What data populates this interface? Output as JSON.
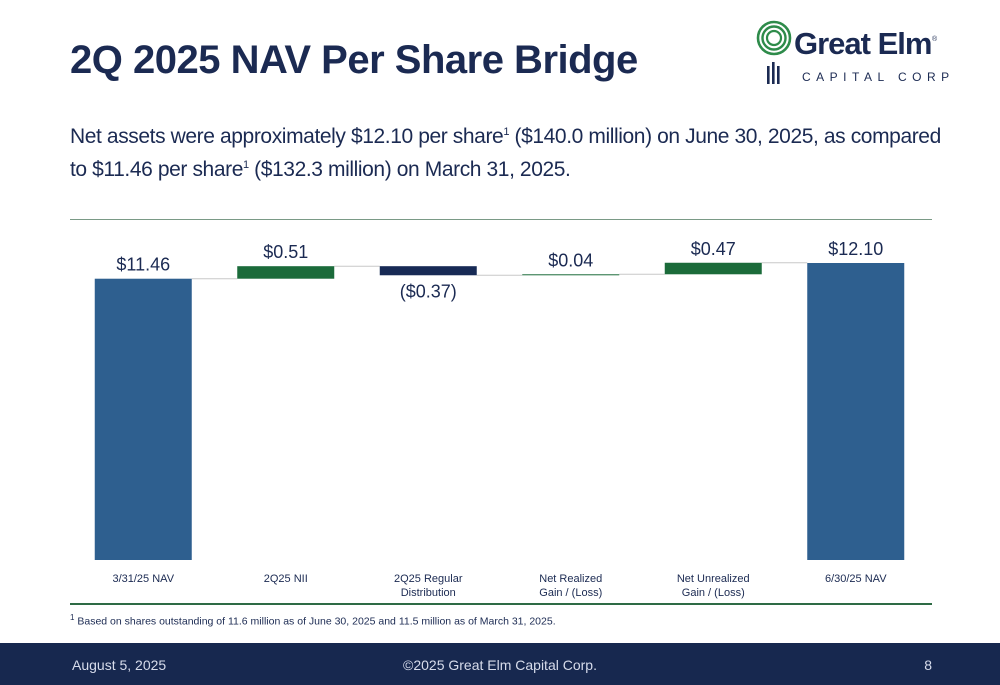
{
  "title": "2Q 2025 NAV Per Share Bridge",
  "logo": {
    "name": "Great Elm",
    "sub": "CAPITAL CORP",
    "reg": "®"
  },
  "subtitle": {
    "p1": "Net assets were approximately $12.10 per share",
    "sup1": "1",
    "p2": " ($140.0 million) on June 30, 2025, as compared to $11.46 per share",
    "sup2": "1",
    "p3": " ($132.3 million) on March 31, 2025."
  },
  "chart_data": {
    "type": "bar",
    "subtype": "waterfall",
    "categories": [
      [
        "3/31/25 NAV"
      ],
      [
        "2Q25 NII"
      ],
      [
        "2Q25 Regular",
        "Distribution"
      ],
      [
        "Net Realized",
        "Gain / (Loss)"
      ],
      [
        "Net Unrealized",
        "Gain / (Loss)"
      ],
      [
        "6/30/25 NAV"
      ]
    ],
    "values": [
      11.46,
      0.51,
      -0.37,
      0.04,
      0.47,
      12.1
    ],
    "kinds": [
      "total",
      "delta",
      "delta",
      "delta",
      "delta",
      "total"
    ],
    "labels": [
      "$11.46",
      "$0.51",
      "($0.37)",
      "$0.04",
      "$0.47",
      "$12.10"
    ],
    "colors": {
      "total": "#2e5f8f",
      "increase": "#1b6b3a",
      "decrease": "#172a55",
      "connector": "#c8c8c8"
    },
    "grid": false,
    "legend": "none"
  },
  "footnote": {
    "sup": "1",
    "text": " Based on shares outstanding of 11.6 million as of June 30, 2025 and 11.5 million as of March 31, 2025."
  },
  "footer": {
    "date": "August 5, 2025",
    "copyright": "©2025 Great Elm Capital Corp.",
    "page": "8"
  }
}
